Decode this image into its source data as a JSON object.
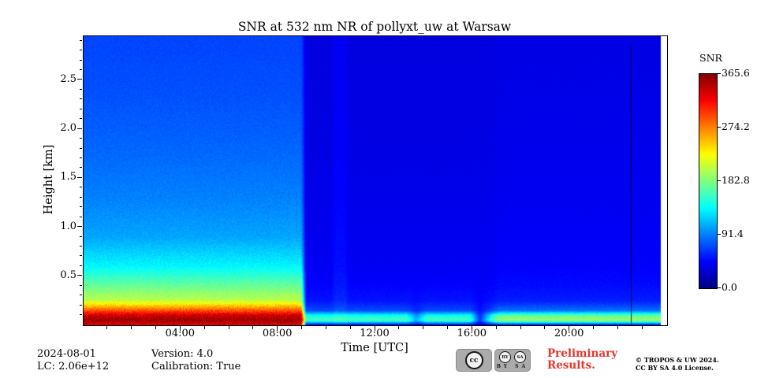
{
  "chart_data": {
    "type": "heatmap",
    "title": "SNR at 532 nm NR of pollyxt_uw at Warsaw",
    "xlabel": "Time [UTC]",
    "ylabel": "Height [km]",
    "xlim": [
      0,
      24
    ],
    "ylim": [
      0,
      2.95
    ],
    "grid": false,
    "colormap": "jet",
    "x_ticks": {
      "positions": [
        4,
        8,
        12,
        16,
        20
      ],
      "labels": [
        "04:00",
        "08:00",
        "12:00",
        "16:00",
        "20:00"
      ],
      "minor_step": 1
    },
    "y_ticks": {
      "positions": [
        0.5,
        1.0,
        1.5,
        2.0,
        2.5
      ],
      "labels": [
        "0.5",
        "1.0",
        "1.5",
        "2.0",
        "2.5"
      ],
      "minor_step": 0.1
    },
    "colorbar": {
      "title": "SNR",
      "vmin": 0,
      "vmax": 365.6,
      "ticks": [
        0.0,
        91.4,
        182.8,
        274.2,
        365.6
      ],
      "labels": [
        "0.0",
        "91.4",
        "182.8",
        "274.2",
        "365.6"
      ]
    },
    "data_end_hour": 23.75,
    "artifact_line": {
      "hour": 22.5,
      "bottom_km": 0.0,
      "top_km": 2.85
    },
    "heights_km": [
      0.0,
      0.05,
      0.1,
      0.15,
      0.25,
      0.4,
      0.6,
      0.9,
      1.3,
      1.8,
      2.4,
      2.95
    ],
    "time_hours": [
      0.0,
      8.95,
      9.15,
      10.2,
      10.35,
      10.75,
      10.9,
      13.3,
      13.7,
      14.1,
      15.9,
      16.3,
      16.8,
      17.1,
      23.75
    ],
    "values_note": "columns[time][height], SNR units",
    "columns": [
      [
        330,
        355,
        340,
        290,
        205,
        175,
        135,
        105,
        92,
        82,
        74,
        70
      ],
      [
        330,
        355,
        340,
        290,
        205,
        175,
        135,
        105,
        92,
        82,
        74,
        70
      ],
      [
        40,
        165,
        140,
        72,
        52,
        46,
        42,
        40,
        38,
        36,
        35,
        34
      ],
      [
        40,
        165,
        140,
        72,
        52,
        46,
        42,
        40,
        38,
        36,
        35,
        34
      ],
      [
        45,
        170,
        145,
        78,
        60,
        54,
        50,
        48,
        46,
        44,
        43,
        42
      ],
      [
        45,
        170,
        145,
        78,
        60,
        54,
        50,
        48,
        46,
        44,
        43,
        42
      ],
      [
        40,
        165,
        140,
        72,
        52,
        46,
        42,
        40,
        38,
        36,
        35,
        34
      ],
      [
        40,
        165,
        140,
        72,
        52,
        46,
        42,
        40,
        38,
        36,
        35,
        34
      ],
      [
        35,
        110,
        95,
        60,
        50,
        45,
        42,
        40,
        38,
        36,
        35,
        34
      ],
      [
        40,
        165,
        140,
        72,
        52,
        46,
        42,
        40,
        38,
        36,
        35,
        34
      ],
      [
        40,
        165,
        140,
        72,
        52,
        46,
        42,
        40,
        38,
        36,
        35,
        34
      ],
      [
        30,
        62,
        58,
        50,
        46,
        44,
        42,
        40,
        38,
        36,
        35,
        34
      ],
      [
        40,
        165,
        140,
        72,
        52,
        46,
        42,
        40,
        38,
        36,
        35,
        34
      ],
      [
        45,
        195,
        170,
        85,
        56,
        49,
        45,
        43,
        41,
        39,
        37,
        36
      ],
      [
        45,
        195,
        170,
        85,
        56,
        49,
        45,
        43,
        41,
        39,
        37,
        36
      ]
    ]
  },
  "footer": {
    "date": "2024-08-01",
    "lc": "LC: 2.06e+12",
    "version": "Version: 4.0",
    "calibration": "Calibration: True",
    "preliminary": {
      "line1": "Preliminary",
      "line2": "Results.",
      "color": "#e8342a"
    },
    "copyright": {
      "line1": "© TROPOS & UW 2024.",
      "line2": "CC BY SA 4.0 License."
    },
    "badge": {
      "cc": "cc",
      "by": "BY",
      "sa": "SA",
      "caption": "BY SA"
    }
  }
}
